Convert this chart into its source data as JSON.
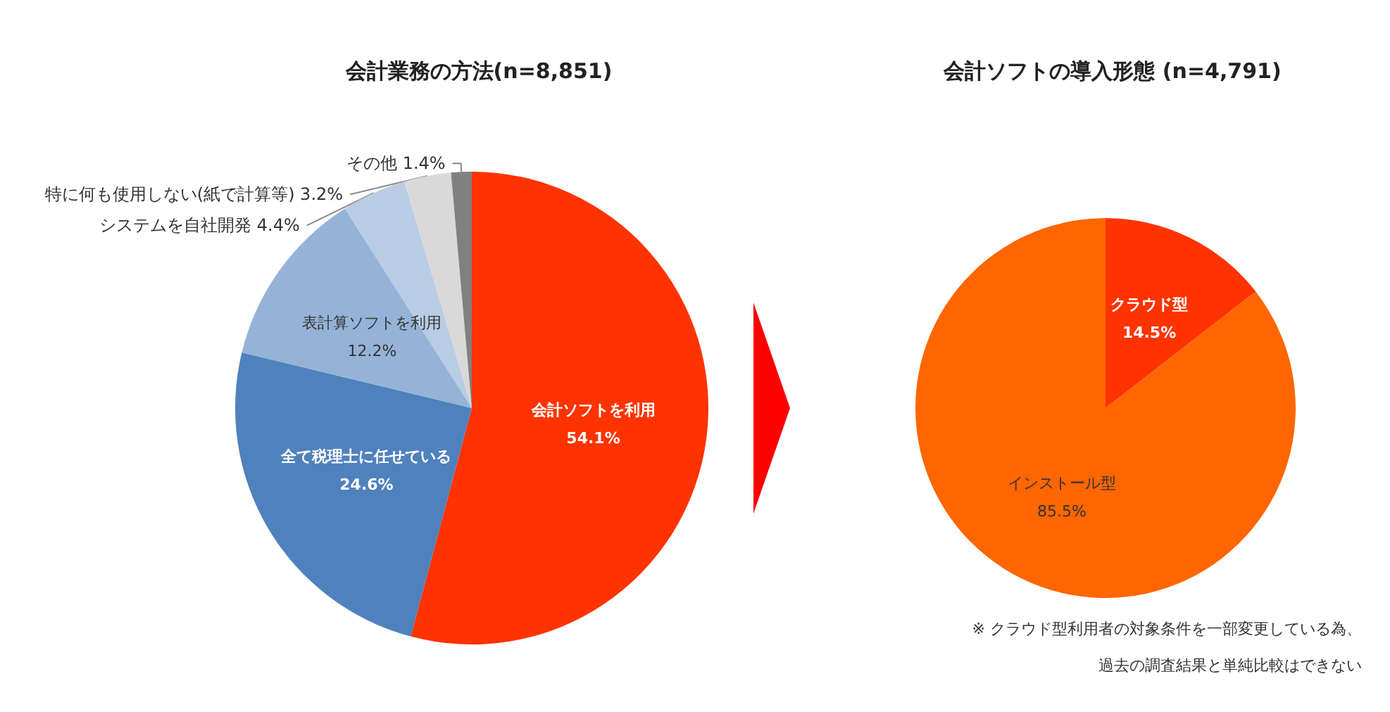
{
  "chart_data": [
    {
      "type": "pie",
      "title": "会計業務の方法(n=8,851)",
      "categories": [
        "会計ソフトを利用",
        "全て税理士に任せている",
        "表計算ソフトを利用",
        "システムを自社開発",
        "特に何も使用しない(紙で計算等)",
        "その他"
      ],
      "values": [
        54.1,
        24.6,
        12.2,
        4.4,
        3.2,
        1.4
      ],
      "value_labels": [
        "54.1%",
        "24.6%",
        "12.2%",
        "4.4%",
        "3.2%",
        "1.4%"
      ],
      "colors": [
        "#ff3300",
        "#4f81bd",
        "#95b3d7",
        "#b8cce4",
        "#d9d9d9",
        "#808080"
      ],
      "legend": false
    },
    {
      "type": "pie",
      "title": "会計ソフトの導入形態 (n=4,791)",
      "categories": [
        "クラウド型",
        "インストール型"
      ],
      "values": [
        14.5,
        85.5
      ],
      "value_labels": [
        "14.5%",
        "85.5%"
      ],
      "colors": [
        "#ff3300",
        "#ff6600"
      ],
      "legend": false,
      "annotations": [
        "※ クラウド型利用者の対象条件を一部変更している為、",
        "過去の調査結果と単純比較はできない"
      ]
    }
  ]
}
